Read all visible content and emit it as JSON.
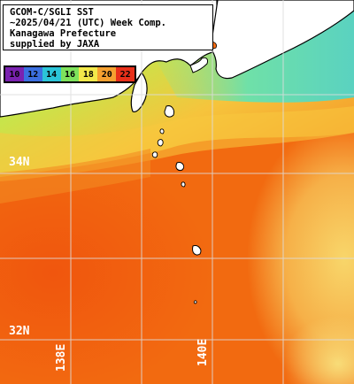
{
  "title_lines": [
    "GCOM-C/SGLI SST",
    "~2025/04/21 (UTC) Week Comp.",
    "Kanagawa Prefecture",
    "supplied by JAXA"
  ],
  "colorbar": {
    "ticks": [
      "10",
      "12",
      "14",
      "16",
      "18",
      "20",
      "22"
    ],
    "colors": [
      "#7a22b0",
      "#3b6fe0",
      "#2bc4d8",
      "#7ee25c",
      "#f2e84a",
      "#f5a030",
      "#e8301a"
    ]
  },
  "grid_labels": {
    "lat_34": "34N",
    "lat_32": "32N",
    "lon_138": "138E",
    "lon_140": "140E"
  },
  "palette": {
    "land": "#ffffff",
    "coastline": "#000000",
    "gridline": "#dddddd",
    "cold_water": "#7ee27a",
    "mid_water": "#f6d64a",
    "warm_water": "#f26a10"
  }
}
